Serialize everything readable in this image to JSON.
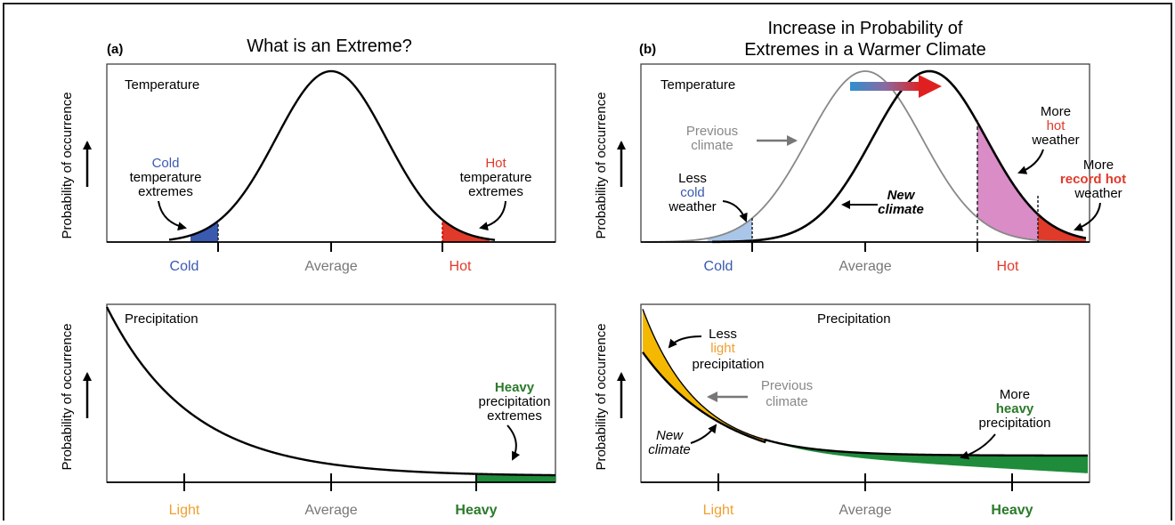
{
  "panel_a": {
    "letter": "(a)",
    "title": "What is an Extreme?",
    "temperature": {
      "box_label": "Temperature",
      "y_label": "Probability of occurrence",
      "cold_note": [
        "Cold",
        "temperature",
        "extremes"
      ],
      "hot_note": [
        "Hot",
        "temperature",
        "extremes"
      ],
      "ticks": [
        "Cold",
        "Average",
        "Hot"
      ]
    },
    "precipitation": {
      "box_label": "Precipitation",
      "y_label": "Probability of occurrence",
      "heavy_note": [
        "Heavy",
        "precipitation",
        "extremes"
      ],
      "ticks": [
        "Light",
        "Average",
        "Heavy"
      ]
    }
  },
  "panel_b": {
    "letter": "(b)",
    "title_line1": "Increase in Probability of",
    "title_line2": "Extremes in a Warmer Climate",
    "temperature": {
      "box_label": "Temperature",
      "y_label": "Probability of occurrence",
      "previous_climate": [
        "Previous",
        "climate"
      ],
      "new_climate": [
        "New",
        "climate"
      ],
      "less_cold": [
        "Less",
        "cold",
        "weather"
      ],
      "more_hot": [
        "More",
        "hot",
        "weather"
      ],
      "more_record_hot": [
        "More",
        "record hot",
        "weather"
      ],
      "ticks": [
        "Cold",
        "Average",
        "Hot"
      ]
    },
    "precipitation": {
      "box_label": "Precipitation",
      "y_label": "Probability of occurrence",
      "less_light": [
        "Less",
        "light",
        "precipitation"
      ],
      "previous_climate": [
        "Previous",
        "climate"
      ],
      "new_climate": [
        "New",
        "climate"
      ],
      "more_heavy": [
        "More",
        "heavy",
        "precipitation"
      ],
      "ticks": [
        "Light",
        "Average",
        "Heavy"
      ]
    }
  },
  "colors": {
    "cold": "#3a5ab0",
    "light_cold": "#a9c6e8",
    "hot": "#e03a2a",
    "more_hot_fill": "#d98cc6",
    "light_precip": "#f0a030",
    "light_precip_fill": "#f5b800",
    "heavy": "#2a7a2a",
    "heavy_fill": "#1e8c3a",
    "previous_curve": "#888888",
    "average_text": "#777777"
  }
}
